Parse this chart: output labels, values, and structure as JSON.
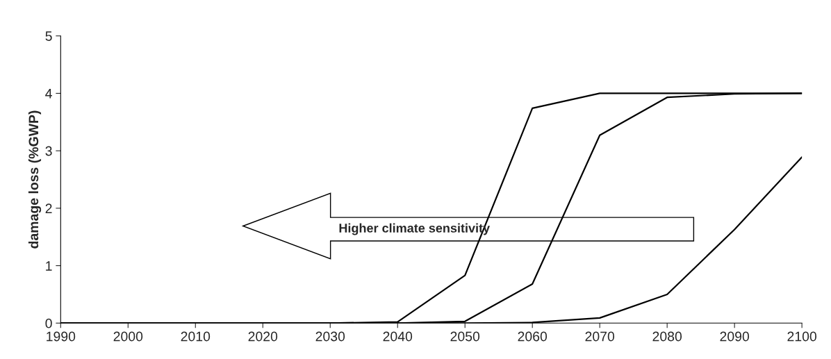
{
  "chart_data": {
    "type": "line",
    "ylabel": "damage loss (%GWP)",
    "x": [
      1990,
      2000,
      2010,
      2020,
      2030,
      2040,
      2050,
      2060,
      2070,
      2080,
      2090,
      2100
    ],
    "series": [
      {
        "color": "#000000",
        "values": [
          0,
          0,
          0,
          0,
          0,
          0.02,
          0.83,
          3.74,
          4.0,
          4.0,
          4.0,
          4.0
        ]
      },
      {
        "color": "#000000",
        "values": [
          0,
          0,
          0,
          0,
          0,
          0,
          0.03,
          0.68,
          3.27,
          3.93,
          3.99,
          4.0
        ]
      },
      {
        "color": "#000000",
        "values": [
          0,
          0,
          0,
          0,
          0,
          0,
          0,
          0.01,
          0.09,
          0.5,
          1.63,
          2.89
        ]
      }
    ],
    "xlim": [
      1990,
      2100
    ],
    "xticks": [
      1990,
      2000,
      2010,
      2020,
      2030,
      2040,
      2050,
      2060,
      2070,
      2080,
      2090,
      2100
    ],
    "ylim": [
      0,
      5
    ],
    "yticks": [
      0,
      1,
      2,
      3,
      4,
      5
    ],
    "annotations": [
      "Higher climate sensitivity"
    ],
    "grid": false,
    "marker": "none",
    "line_style": "solid"
  }
}
